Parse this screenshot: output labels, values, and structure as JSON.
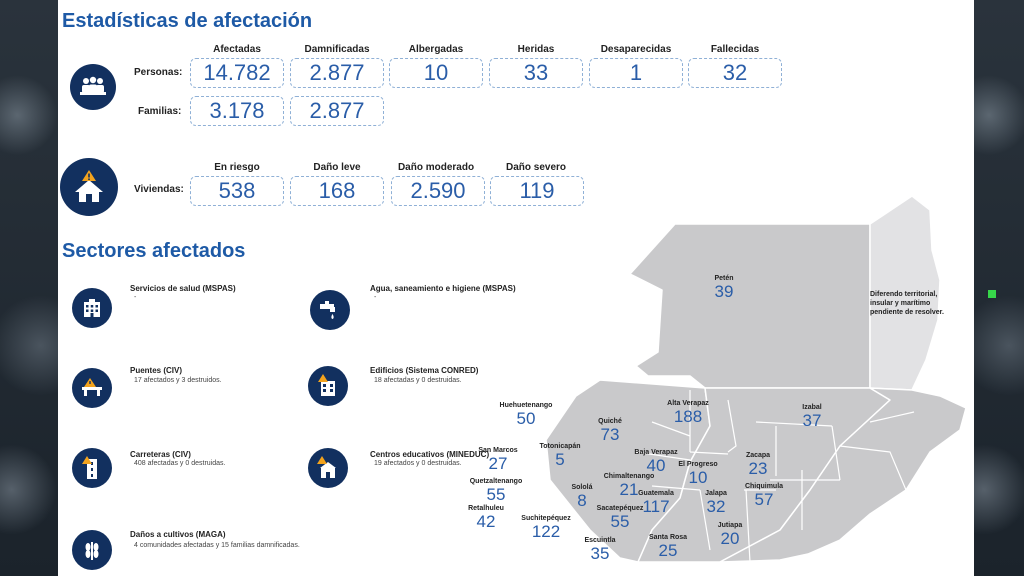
{
  "stats": {
    "title": "Estadísticas de afectación",
    "personas_label": "Personas:",
    "familias_label": "Familias:",
    "viviendas_label": "Viviendas:",
    "people_headers": [
      "Afectadas",
      "Damnificadas",
      "Albergadas",
      "Heridas",
      "Desaparecidas",
      "Fallecidas"
    ],
    "personas_values": [
      "14.782",
      "2.877",
      "10",
      "33",
      "1",
      "32"
    ],
    "familias_values": [
      "3.178",
      "2.877"
    ],
    "housing_headers": [
      "En riesgo",
      "Daño leve",
      "Daño moderado",
      "Daño severo"
    ],
    "viviendas_values": [
      "538",
      "168",
      "2.590",
      "119"
    ]
  },
  "sectors": {
    "title": "Sectores afectados",
    "items": [
      {
        "title": "Servicios de salud (MSPAS)",
        "desc": "-",
        "icon": "hospital-icon"
      },
      {
        "title": "Agua, saneamiento e higiene (MSPAS)",
        "desc": "-",
        "icon": "water-tap-icon"
      },
      {
        "title": "Puentes (CIV)",
        "desc": "17 afectados y 3 destruidos.",
        "icon": "bridge-icon"
      },
      {
        "title": "Edificios (Sistema CONRED)",
        "desc": "18 afectadas y 0 destruidas.",
        "icon": "building-icon"
      },
      {
        "title": "Carreteras (CIV)",
        "desc": "408 afectadas y 0 destruidas.",
        "icon": "road-icon"
      },
      {
        "title": "Centros educativos (MINEDUC)",
        "desc": "19 afectados y 0 destruidas.",
        "icon": "school-icon"
      },
      {
        "title": "Daños a cultivos (MAGA)",
        "desc": "4 comunidades afectadas y 15 familias damnificadas.",
        "icon": "crop-icon"
      }
    ]
  },
  "map": {
    "note": "Diferendo territorial, insular y marítimo pendiente de resolver.",
    "departments": [
      {
        "name": "Petén",
        "value": "39"
      },
      {
        "name": "Huehuetenango",
        "value": "50"
      },
      {
        "name": "Alta Verapaz",
        "value": "188"
      },
      {
        "name": "Izabal",
        "value": "37"
      },
      {
        "name": "Quiché",
        "value": "73"
      },
      {
        "name": "Totonicapán",
        "value": "5"
      },
      {
        "name": "San Marcos",
        "value": "27"
      },
      {
        "name": "Baja Verapaz",
        "value": "40"
      },
      {
        "name": "El Progreso",
        "value": "10"
      },
      {
        "name": "Zacapa",
        "value": "23"
      },
      {
        "name": "Quetzaltenango",
        "value": "55"
      },
      {
        "name": "Sololá",
        "value": "8"
      },
      {
        "name": "Chimaltenango",
        "value": "21"
      },
      {
        "name": "Chiquimula",
        "value": "57"
      },
      {
        "name": "Retalhuleu",
        "value": "42"
      },
      {
        "name": "Suchitepéquez",
        "value": "122"
      },
      {
        "name": "Sacatepéquez",
        "value": "55"
      },
      {
        "name": "Guatemala",
        "value": "117"
      },
      {
        "name": "Jalapa",
        "value": "32"
      },
      {
        "name": "Escuintla",
        "value": "35"
      },
      {
        "name": "Santa Rosa",
        "value": "25"
      },
      {
        "name": "Jutiapa",
        "value": "20"
      }
    ]
  }
}
